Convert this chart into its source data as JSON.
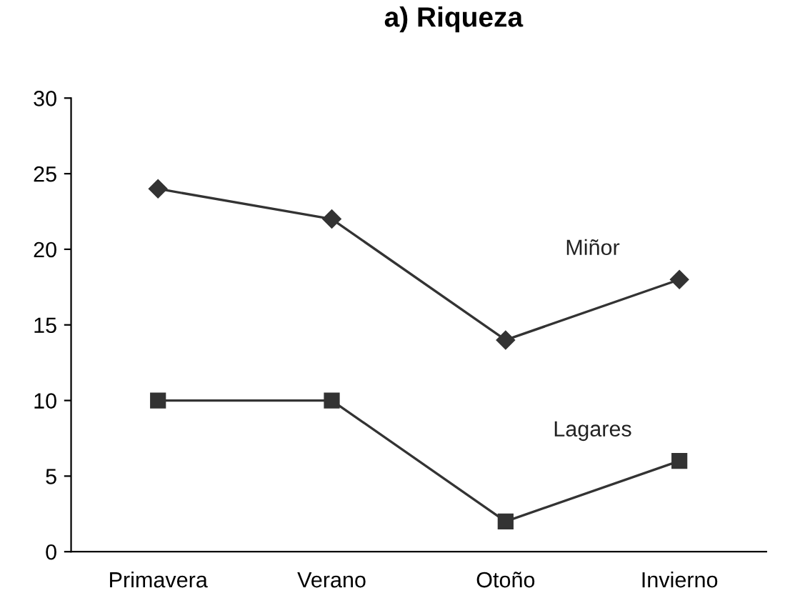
{
  "chart_data": {
    "type": "line",
    "title": "a) Riqueza",
    "categories": [
      "Primavera",
      "Verano",
      "Otoño",
      "Invierno"
    ],
    "series": [
      {
        "name": "Miñor",
        "color": "#333333",
        "marker": "diamond",
        "values": [
          24,
          22,
          14,
          18
        ]
      },
      {
        "name": "Lagares",
        "color": "#333333",
        "marker": "square",
        "values": [
          10,
          10,
          2,
          6
        ]
      }
    ],
    "ylim": [
      0,
      30
    ],
    "yticks": [
      0,
      5,
      10,
      15,
      20,
      25,
      30
    ],
    "grid": false,
    "legend": false,
    "line_style": "solid"
  }
}
